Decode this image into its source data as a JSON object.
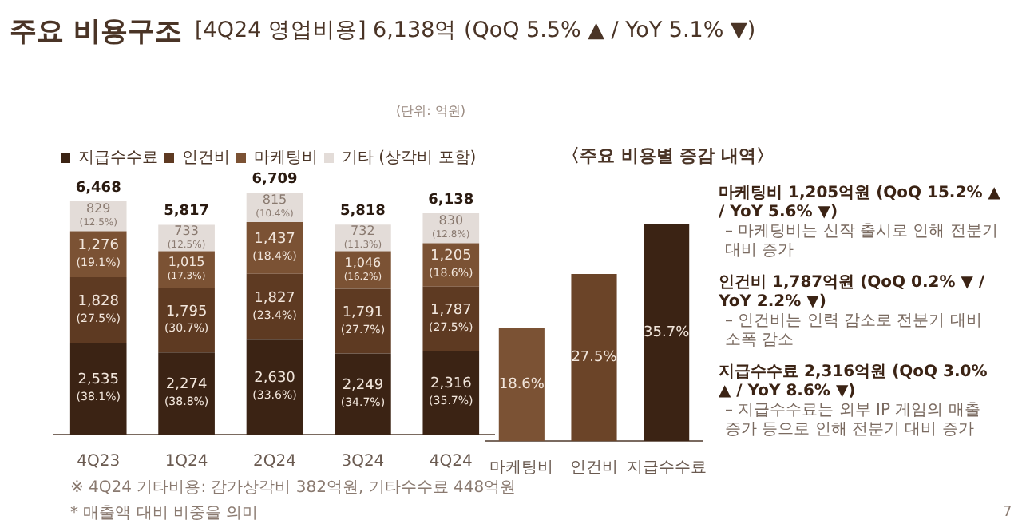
{
  "chart_data": [
    {
      "type": "bar",
      "stacked": true,
      "title": "주요 비용구조",
      "subtitle": "[4Q24 영업비용] 6,138억 (QoQ 5.5% ▲ / YoY 5.1% ▼)",
      "legend": "top left",
      "categories": [
        "4Q23",
        "1Q24",
        "2Q24",
        "3Q24",
        "4Q24"
      ],
      "series": [
        {
          "name": "지급수수료",
          "color": "#3b2314",
          "values": [
            2535,
            2274,
            2630,
            2249,
            2316
          ],
          "value_labels": [
            "2,535 (38.1%)",
            "2,274 (38.8%)",
            "2,630 (33.6%)",
            "2,249 (34.7%)",
            "2,316 (35.7%)"
          ]
        },
        {
          "name": "인건비",
          "color": "#5e3a22",
          "values": [
            1828,
            1795,
            1827,
            1791,
            1787
          ],
          "value_labels": [
            "1,828 (27.5%)",
            "1,795 (30.7%)",
            "1,827 (23.4%)",
            "1,791 (27.7%)",
            "1,787 (27.5%)"
          ]
        },
        {
          "name": "마케팅비",
          "color": "#7b5234",
          "values": [
            1276,
            1015,
            1437,
            1046,
            1205
          ],
          "value_labels": [
            "1,276 (19.1%)",
            "1,015 (17.3%)",
            "1,437 (18.4%)",
            "1,046 (16.2%)",
            "1,205 (18.6%)"
          ]
        },
        {
          "name": "기타 (상각비 포함)",
          "color": "#e3dcd8",
          "values": [
            829,
            733,
            815,
            732,
            830
          ],
          "value_labels": [
            "829 (12.5%)",
            "733 (12.5%)",
            "815 (10.4%)",
            "732 (11.3%)",
            "830 (12.8%)"
          ]
        }
      ],
      "totals": [
        "6,468",
        "5,817",
        "6,709",
        "5,818",
        "6,138"
      ],
      "annotations": [
        "(단위: 억원)",
        "※ 4Q24 기타비용: 감가상각비 382억원, 기타수수료 448억원",
        "* 매출액 대비 비중을 의미",
        "7"
      ]
    },
    {
      "type": "bar",
      "title": "〈주요 비용별 증감 내역〉",
      "categories": [
        "마케팅비",
        "인건비",
        "지급수수료"
      ],
      "values": [
        18.6,
        27.5,
        35.7
      ],
      "colors": [
        "#7b5234",
        "#6b4428",
        "#3b2314"
      ],
      "value_labels": [
        "18.6%",
        "27.5%",
        "35.7%"
      ],
      "annotations": [
        "마케팅비 1,205억원 (QoQ 15.2% ▲ / YoY 5.6% ▼)\n– 마케팅비는 신작 출시로 인해 전분기 대비 증가",
        "인건비 1,787억원 (QoQ 0.2% ▼ / YoY 2.2% ▼)\n– 인건비는 인력 감소로 전분기 대비 소폭 감소",
        "지급수수료 2,316억원 (QoQ 3.0% ▲ / YoY 8.6% ▼)\n– 지급수수료는 외부 IP 게임의 매출 증가 등으로 인해 전분기 대비 증가"
      ]
    }
  ]
}
